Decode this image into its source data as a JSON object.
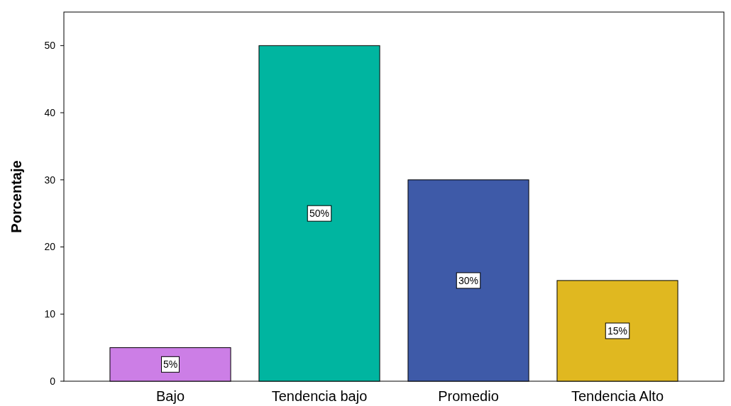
{
  "chart_data": {
    "type": "bar",
    "ylabel": "Porcentaje",
    "categories": [
      "Bajo",
      "Tendencia bajo",
      "Promedio",
      "Tendencia Alto"
    ],
    "values": [
      5,
      50,
      30,
      15
    ],
    "colors": [
      "#cc7ee6",
      "#00b5a0",
      "#3e5aa8",
      "#e0b820"
    ],
    "value_labels": [
      "5%",
      "50%",
      "30%",
      "15%"
    ],
    "ylim": [
      0,
      55
    ],
    "yticks": [
      0,
      10,
      20,
      30,
      40,
      50
    ],
    "grid": false
  }
}
